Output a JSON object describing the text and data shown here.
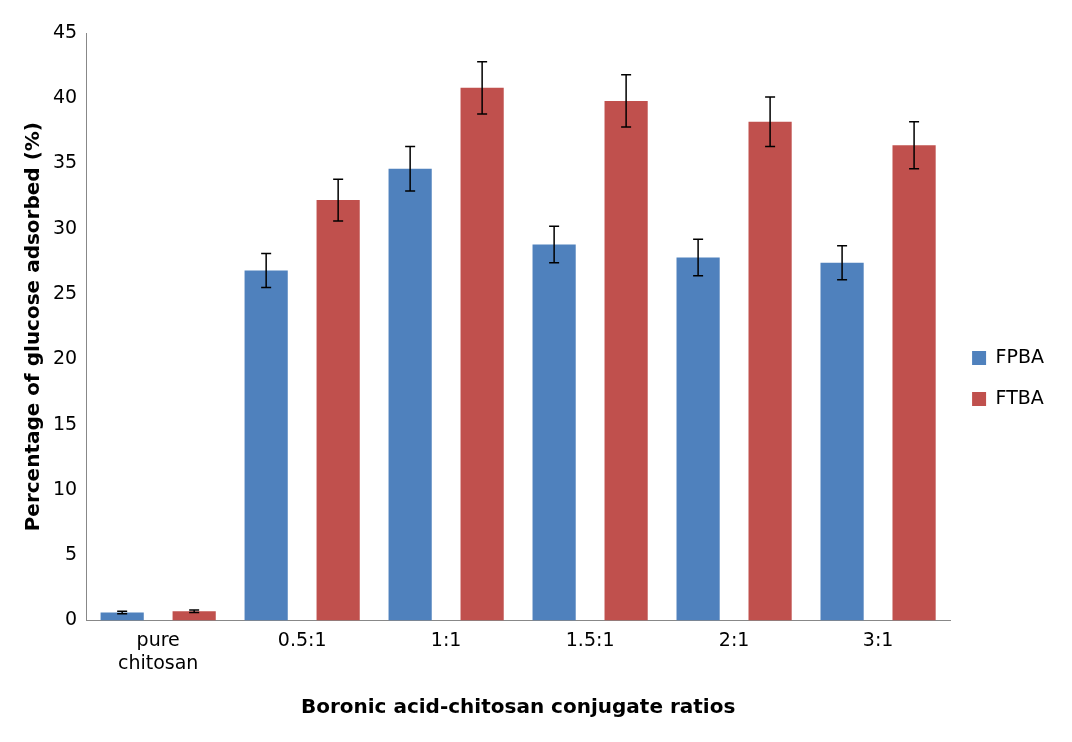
{
  "chart_data": {
    "type": "bar",
    "xlabel": "Boronic acid-chitosan conjugate ratios",
    "ylabel": "Percentage of glucose adsorbed (%)",
    "categories": [
      "pure chitosan",
      "0.5:1",
      "1:1",
      "1.5:1",
      "2:1",
      "3:1"
    ],
    "series": [
      {
        "name": "FPBA",
        "color": "#4f81bd",
        "values": [
          0.6,
          26.8,
          34.6,
          28.8,
          27.8,
          27.4
        ],
        "errors": [
          0.1,
          1.3,
          1.7,
          1.4,
          1.4,
          1.3
        ]
      },
      {
        "name": "FTBA",
        "color": "#c0504d",
        "values": [
          0.7,
          32.2,
          40.8,
          39.8,
          38.2,
          36.4
        ],
        "errors": [
          0.1,
          1.6,
          2.0,
          2.0,
          1.9,
          1.8
        ]
      }
    ],
    "ylim": [
      0,
      45
    ],
    "yticks": [
      0,
      5,
      10,
      15,
      20,
      25,
      30,
      35,
      40,
      45
    ],
    "grid": false,
    "legend": "right"
  }
}
